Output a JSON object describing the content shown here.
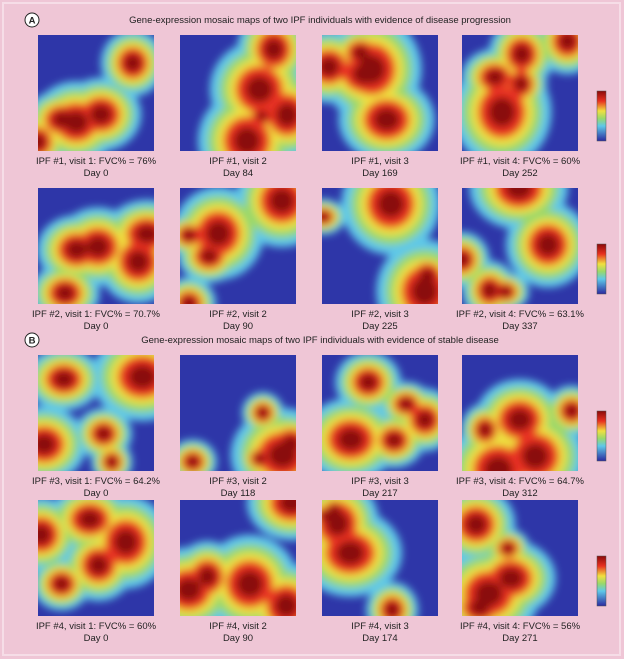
{
  "panels": [
    {
      "label": "A",
      "title": "Gene-expression mosaic maps of two IPF individuals with evidence of disease progression",
      "maps": [
        {
          "caption": "IPF #1, visit 1: FVC% = 76%",
          "day": "Day 0"
        },
        {
          "caption": "IPF #1, visit 2",
          "day": "Day 84"
        },
        {
          "caption": "IPF #1, visit 3",
          "day": "Day 169"
        },
        {
          "caption": "IPF #1, visit 4: FVC% = 60%",
          "day": "Day 252"
        },
        {
          "caption": "IPF #2, visit 1: FVC% = 70.7%",
          "day": "Day 0"
        },
        {
          "caption": "IPF #2, visit 2",
          "day": "Day 90"
        },
        {
          "caption": "IPF #2, visit 3",
          "day": "Day 225"
        },
        {
          "caption": "IPF #2, visit 4: FVC% = 63.1%",
          "day": "Day 337"
        }
      ]
    },
    {
      "label": "B",
      "title": "Gene-expression mosaic maps of two IPF individuals with evidence of stable disease",
      "maps": [
        {
          "caption": "IPF #3, visit 1: FVC% = 64.2%",
          "day": "Day 0"
        },
        {
          "caption": "IPF #3, visit 2",
          "day": "Day 118"
        },
        {
          "caption": "IPF #3, visit 3",
          "day": "Day 217"
        },
        {
          "caption": "IPF #3, visit 4: FVC% = 64.7%",
          "day": "Day 312"
        },
        {
          "caption": "IPF #4, visit 1: FVC% = 60%",
          "day": "Day 0"
        },
        {
          "caption": "IPF #4, visit 2",
          "day": "Day 90"
        },
        {
          "caption": "IPF #4, visit 3",
          "day": "Day 174"
        },
        {
          "caption": "IPF #4, visit 4: FVC% = 56%",
          "day": "Day 271"
        }
      ]
    }
  ]
}
